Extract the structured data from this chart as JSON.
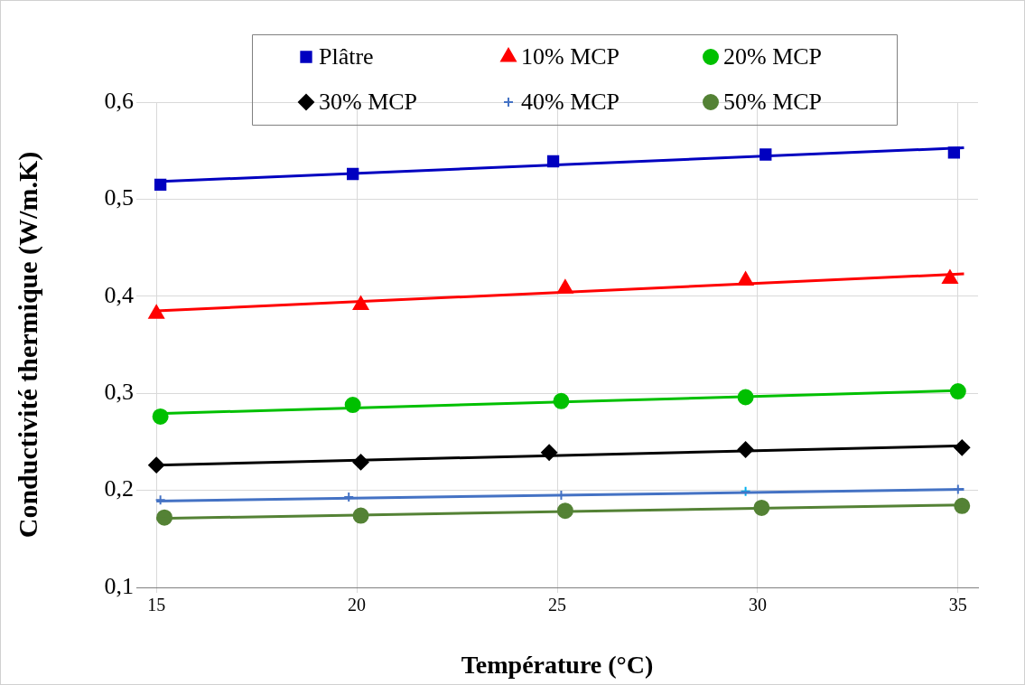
{
  "chart_data": {
    "type": "scatter",
    "xlabel": "Température (°C)",
    "ylabel": "Conductivité thermique (W/m.K)",
    "xlim": [
      14.5,
      35.5
    ],
    "xticks": [
      15,
      20,
      25,
      30,
      35
    ],
    "ylim": [
      0.1,
      0.6
    ],
    "yticks": [
      {
        "value": 0.1,
        "label": "0,1"
      },
      {
        "value": 0.2,
        "label": "0,2"
      },
      {
        "value": 0.3,
        "label": "0,3"
      },
      {
        "value": 0.4,
        "label": "0,4"
      },
      {
        "value": 0.5,
        "label": "0,5"
      },
      {
        "value": 0.6,
        "label": "0,6"
      }
    ],
    "grid": true,
    "legend": "top",
    "series": [
      {
        "name": "Plâtre",
        "color": "#0000c0",
        "marker": "square",
        "x": [
          15.1,
          19.9,
          24.9,
          30.2,
          34.9
        ],
        "values": [
          0.515,
          0.526,
          0.539,
          0.546,
          0.548
        ]
      },
      {
        "name": "10% MCP",
        "color": "#ff0000",
        "marker": "triangle",
        "x": [
          15,
          20.1,
          25.2,
          29.7,
          34.8
        ],
        "values": [
          0.382,
          0.391,
          0.408,
          0.416,
          0.418
        ]
      },
      {
        "name": "20% MCP",
        "color": "#00c000",
        "marker": "circle",
        "x": [
          15.1,
          19.9,
          25.1,
          29.7,
          35
        ],
        "values": [
          0.276,
          0.288,
          0.292,
          0.296,
          0.302
        ]
      },
      {
        "name": "30% MCP",
        "color": "#000000",
        "marker": "diamond",
        "x": [
          15,
          20.1,
          24.8,
          29.7,
          35.1
        ],
        "values": [
          0.226,
          0.229,
          0.239,
          0.242,
          0.244
        ]
      },
      {
        "name": "40% MCP",
        "color": "#4472c4",
        "marker": "cross",
        "x": [
          15.1,
          19.8,
          25.1,
          29.7,
          35
        ],
        "values": [
          0.19,
          0.193,
          0.195,
          0.199,
          0.201
        ],
        "colors": [
          "#4472c4",
          "#4472c4",
          "#4472c4",
          "#00b0f0",
          "#4472c4"
        ]
      },
      {
        "name": "50% MCP",
        "color": "#548235",
        "marker": "circle",
        "x": [
          15.2,
          20.1,
          25.2,
          30.1,
          35.1
        ],
        "values": [
          0.172,
          0.174,
          0.179,
          0.182,
          0.184
        ]
      },
      {
        "type": "line",
        "color": "#0000c0",
        "x": [
          15,
          35.15
        ],
        "values": [
          0.518,
          0.553
        ]
      },
      {
        "type": "line",
        "color": "#ff0000",
        "x": [
          15,
          35.15
        ],
        "values": [
          0.385,
          0.423
        ]
      },
      {
        "type": "line",
        "color": "#00c000",
        "x": [
          15,
          35.15
        ],
        "values": [
          0.279,
          0.303
        ]
      },
      {
        "type": "line",
        "color": "#000000",
        "x": [
          15,
          35.15
        ],
        "values": [
          0.226,
          0.246
        ]
      },
      {
        "type": "line",
        "color": "#4472c4",
        "x": [
          15,
          35.15
        ],
        "values": [
          0.189,
          0.201
        ]
      },
      {
        "type": "line",
        "color": "#548235",
        "x": [
          15,
          35.15
        ],
        "values": [
          0.171,
          0.185
        ]
      }
    ]
  }
}
